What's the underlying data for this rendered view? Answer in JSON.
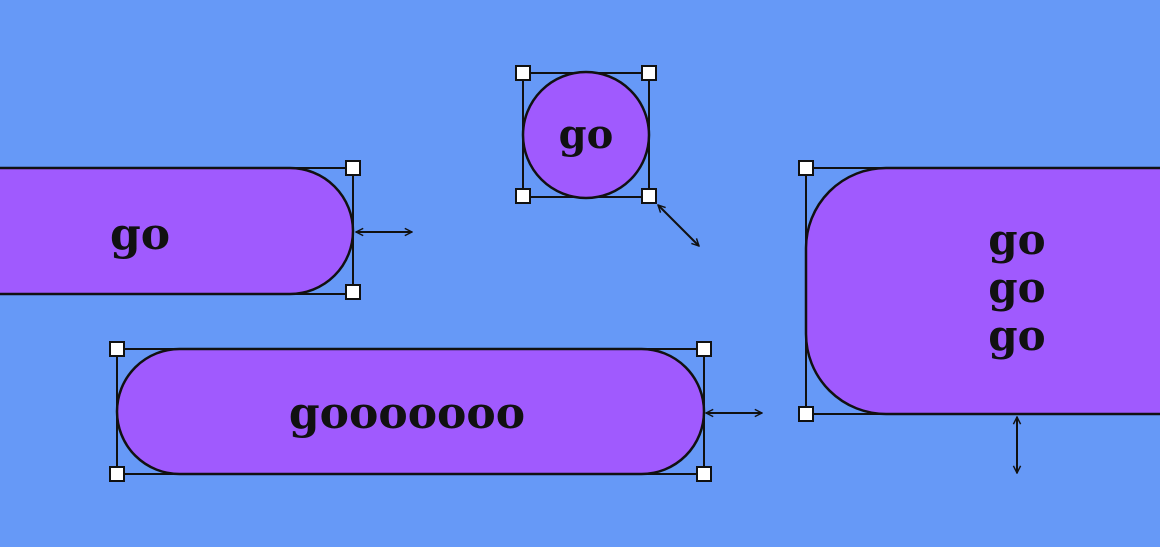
{
  "colors": {
    "background": "#6699F7",
    "shape_fill": "#A05AFE",
    "stroke": "#111111",
    "handle_fill": "#FFFFFF"
  },
  "buttons": {
    "left_pill": {
      "label": "go"
    },
    "circle": {
      "label": "go"
    },
    "wide_pill": {
      "label": "gooooooo"
    },
    "tall_box": {
      "lines": [
        "go",
        "go",
        "go"
      ]
    }
  },
  "icons": {
    "horizontal_resize": "double-arrow-horizontal-icon",
    "diagonal_resize": "double-arrow-diagonal-icon",
    "vertical_resize": "double-arrow-vertical-icon",
    "handle": "square-handle-icon"
  }
}
